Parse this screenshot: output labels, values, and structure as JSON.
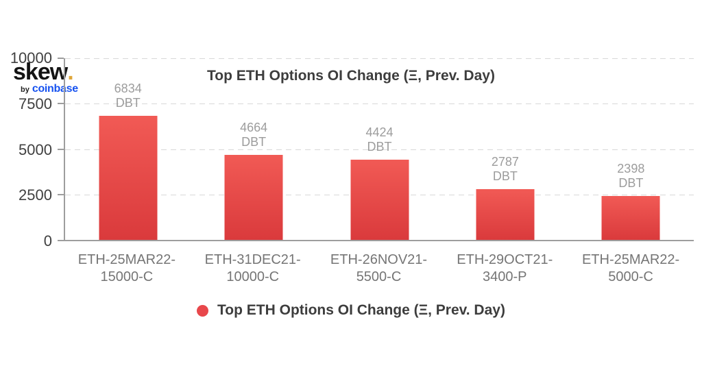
{
  "logo": {
    "brand": "skew",
    "dot": ".",
    "dot_color": "#dfa63b",
    "byline_prefix": "by",
    "byline_brand": "coinbase",
    "coinbase_color": "#1652f0"
  },
  "chart_data": {
    "type": "bar",
    "title": "Top ETH Options OI Change (Ξ, Prev. Day)",
    "legend_label": "Top ETH Options OI Change (Ξ, Prev. Day)",
    "legend_position": "bottom",
    "unit": "DBT",
    "categories": [
      "ETH-25MAR22-15000-C",
      "ETH-31DEC21-10000-C",
      "ETH-26NOV21-5500-C",
      "ETH-29OCT21-3400-P",
      "ETH-25MAR22-5000-C"
    ],
    "values": [
      6834,
      4664,
      4424,
      2787,
      2398
    ],
    "xlabel": "",
    "ylabel": "",
    "yticks": [
      0,
      2500,
      5000,
      7500,
      10000
    ],
    "ylim": [
      0,
      10000
    ],
    "grid": "dashed-horizontal",
    "bar_color_top": "#f15a55",
    "bar_color_bottom": "#da3a3c",
    "legend_marker_color": "#e8474b"
  }
}
